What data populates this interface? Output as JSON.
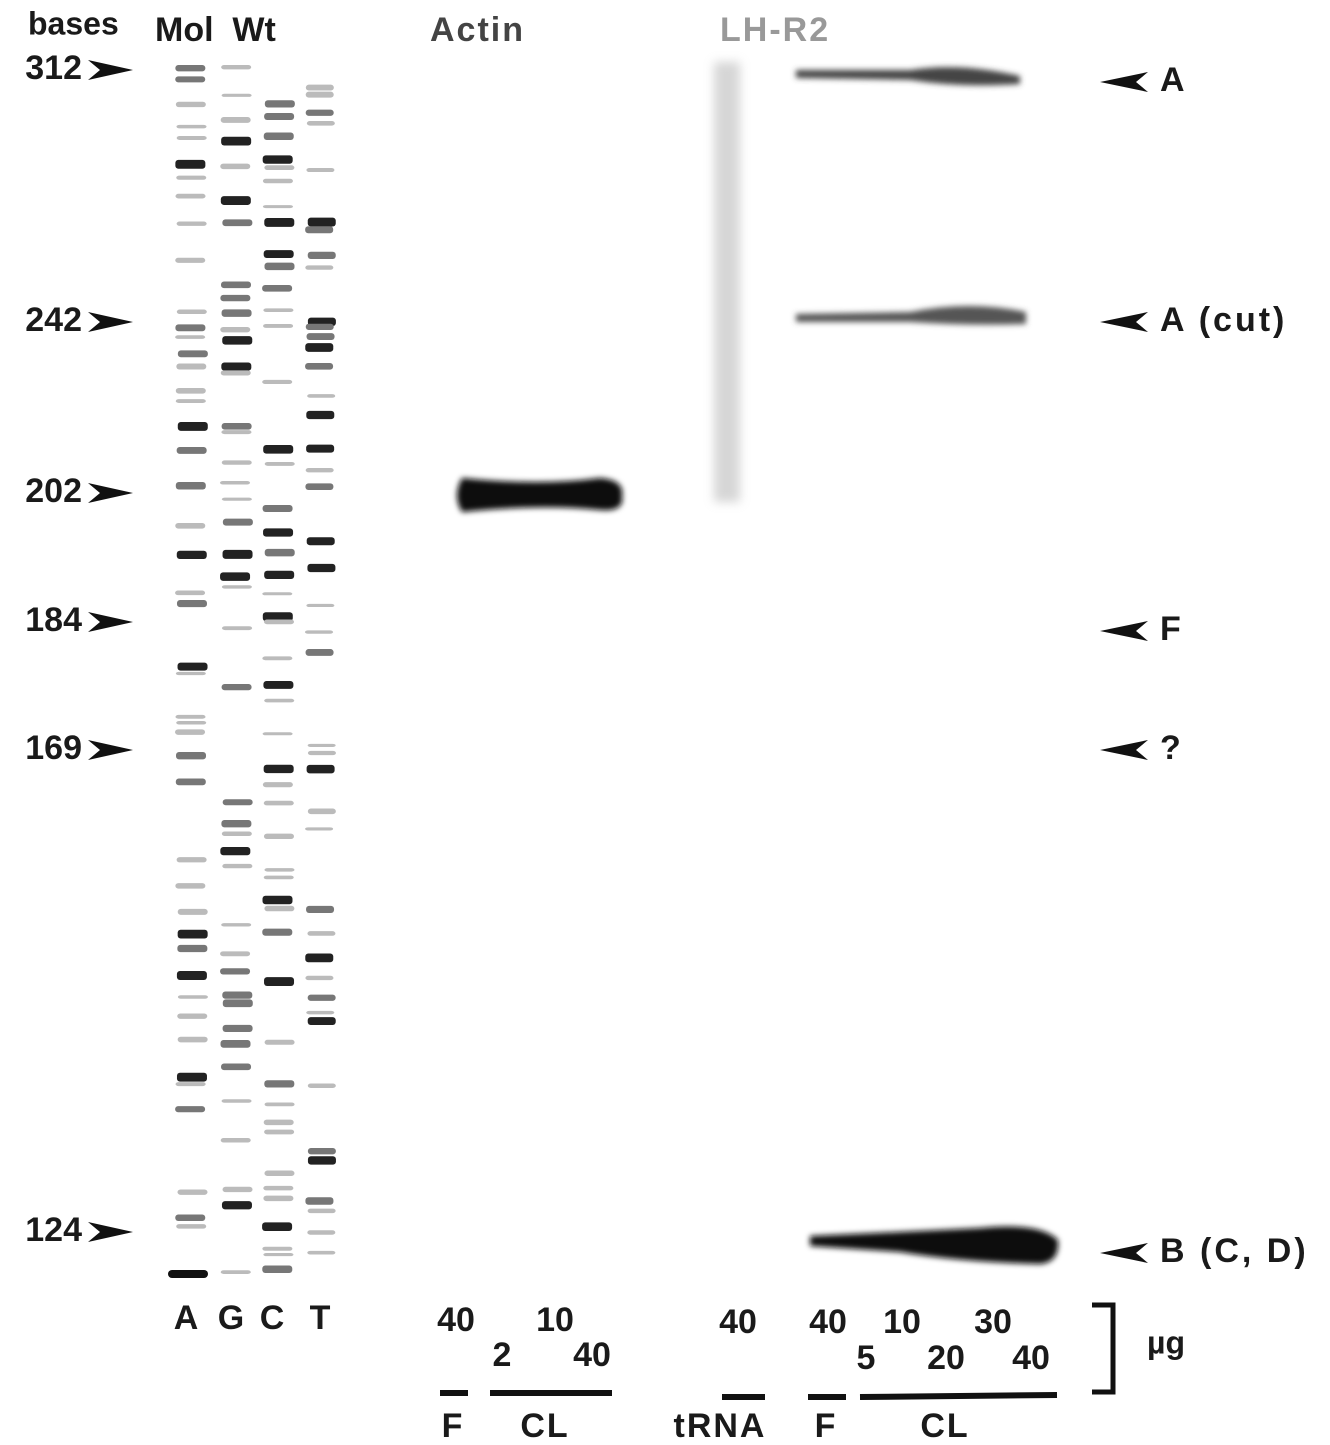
{
  "header": {
    "bases": "bases",
    "mol_wt": "Mol  Wt",
    "actin": "Actin",
    "lh_r2": "LH-R2"
  },
  "markers": [
    "312",
    "242",
    "202",
    "184",
    "169",
    "124"
  ],
  "bands": [
    "A",
    "A (cut)",
    "F",
    "?",
    "B (C, D)"
  ],
  "lanes": [
    "A",
    "G",
    "C",
    "T"
  ],
  "amounts": {
    "actin": [
      "40",
      "10",
      "2",
      "40"
    ],
    "trna": [
      "40"
    ],
    "lh": [
      "40",
      "10",
      "30",
      "5",
      "20",
      "40"
    ],
    "unit": "µg"
  },
  "groups": [
    "F",
    "CL",
    "tRNA",
    "F",
    "CL"
  ]
}
